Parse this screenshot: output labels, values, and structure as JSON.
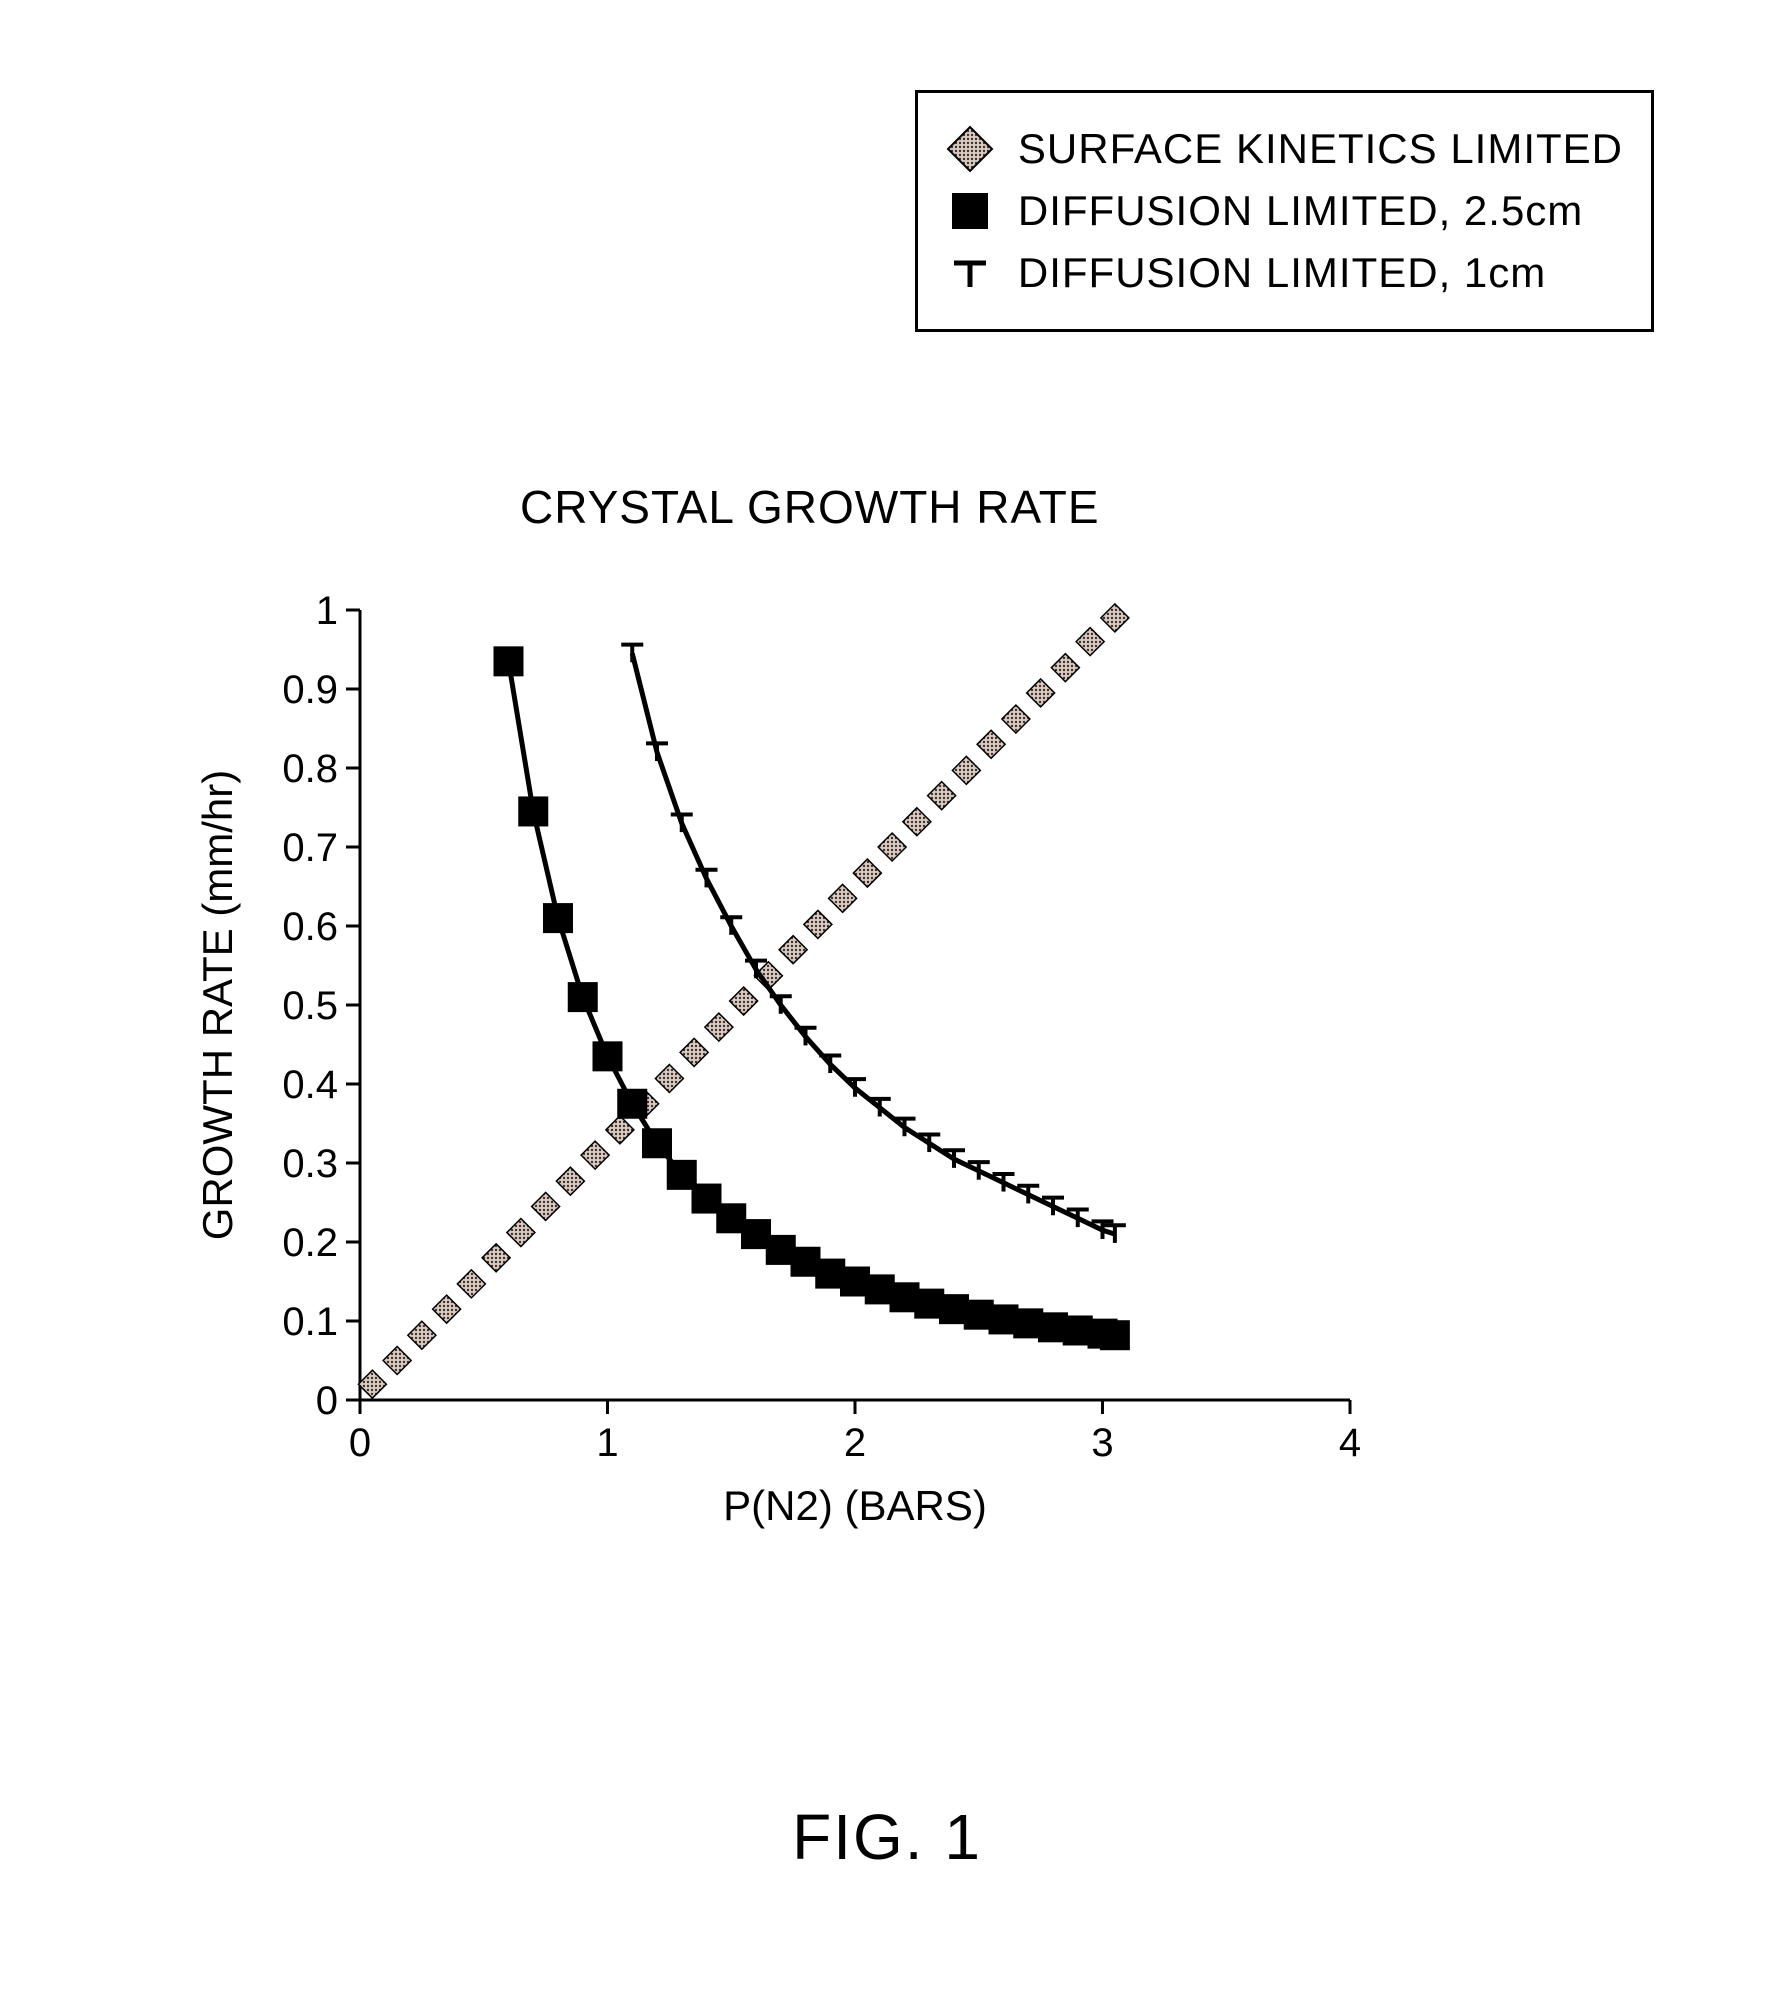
{
  "figure_caption": "FIG. 1",
  "legend": {
    "items": [
      {
        "marker": "diamond-dotted",
        "label": "SURFACE KINETICS LIMITED"
      },
      {
        "marker": "square-black",
        "label": "DIFFUSION LIMITED, 2.5cm"
      },
      {
        "marker": "tee-top",
        "label": "DIFFUSION LIMITED, 1cm"
      }
    ]
  },
  "chart": {
    "type": "line-scatter",
    "title": "CRYSTAL GROWTH RATE",
    "title_fontsize": 46,
    "background_color": "#ffffff",
    "axis_color": "#000000",
    "axis_width": 3,
    "label_fontsize": 42,
    "tick_fontsize": 40,
    "x": {
      "label": "P(N2) (BARS)",
      "min": 0,
      "max": 4,
      "ticks": [
        0,
        1,
        2,
        3,
        4
      ]
    },
    "y": {
      "label": "GROWTH RATE (mm/hr)",
      "min": 0,
      "max": 1,
      "ticks": [
        0,
        0.1,
        0.2,
        0.3,
        0.4,
        0.5,
        0.6,
        0.7,
        0.8,
        0.9,
        1
      ]
    },
    "series": [
      {
        "name": "SURFACE KINETICS LIMITED",
        "marker": "diamond-dotted",
        "color_fill": "#b8a8a0",
        "color_stroke": "#000000",
        "marker_size": 28,
        "line": false,
        "points": [
          [
            0.05,
            0.02
          ],
          [
            0.15,
            0.05
          ],
          [
            0.25,
            0.082
          ],
          [
            0.35,
            0.115
          ],
          [
            0.45,
            0.147
          ],
          [
            0.55,
            0.18
          ],
          [
            0.65,
            0.212
          ],
          [
            0.75,
            0.245
          ],
          [
            0.85,
            0.277
          ],
          [
            0.95,
            0.31
          ],
          [
            1.05,
            0.342
          ],
          [
            1.15,
            0.375
          ],
          [
            1.25,
            0.407
          ],
          [
            1.35,
            0.44
          ],
          [
            1.45,
            0.472
          ],
          [
            1.55,
            0.505
          ],
          [
            1.65,
            0.537
          ],
          [
            1.75,
            0.57
          ],
          [
            1.85,
            0.602
          ],
          [
            1.95,
            0.635
          ],
          [
            2.05,
            0.667
          ],
          [
            2.15,
            0.7
          ],
          [
            2.25,
            0.732
          ],
          [
            2.35,
            0.765
          ],
          [
            2.45,
            0.797
          ],
          [
            2.55,
            0.83
          ],
          [
            2.65,
            0.862
          ],
          [
            2.75,
            0.895
          ],
          [
            2.85,
            0.927
          ],
          [
            2.95,
            0.96
          ],
          [
            3.05,
            0.99
          ]
        ]
      },
      {
        "name": "DIFFUSION LIMITED, 2.5cm",
        "marker": "square-black",
        "color_fill": "#000000",
        "color_stroke": "#000000",
        "marker_size": 30,
        "line": true,
        "line_color": "#000000",
        "line_width": 5,
        "line_range": [
          0.55,
          1.3
        ],
        "points": [
          [
            0.6,
            0.935
          ],
          [
            0.7,
            0.745
          ],
          [
            0.8,
            0.61
          ],
          [
            0.9,
            0.51
          ],
          [
            1.0,
            0.435
          ],
          [
            1.1,
            0.375
          ],
          [
            1.2,
            0.325
          ],
          [
            1.3,
            0.285
          ],
          [
            1.4,
            0.255
          ],
          [
            1.5,
            0.23
          ],
          [
            1.6,
            0.21
          ],
          [
            1.7,
            0.19
          ],
          [
            1.8,
            0.175
          ],
          [
            1.9,
            0.16
          ],
          [
            2.0,
            0.15
          ],
          [
            2.1,
            0.14
          ],
          [
            2.2,
            0.13
          ],
          [
            2.3,
            0.122
          ],
          [
            2.4,
            0.115
          ],
          [
            2.5,
            0.108
          ],
          [
            2.6,
            0.102
          ],
          [
            2.7,
            0.097
          ],
          [
            2.8,
            0.092
          ],
          [
            2.9,
            0.088
          ],
          [
            3.0,
            0.084
          ],
          [
            3.05,
            0.082
          ]
        ]
      },
      {
        "name": "DIFFUSION LIMITED, 1cm",
        "marker": "tee-top",
        "color_fill": "#000000",
        "color_stroke": "#000000",
        "marker_size": 22,
        "line": true,
        "line_color": "#000000",
        "line_width": 5,
        "line_range": [
          1.05,
          3.05
        ],
        "points": [
          [
            1.1,
            0.945
          ],
          [
            1.2,
            0.82
          ],
          [
            1.3,
            0.73
          ],
          [
            1.4,
            0.66
          ],
          [
            1.5,
            0.6
          ],
          [
            1.6,
            0.545
          ],
          [
            1.7,
            0.5
          ],
          [
            1.8,
            0.46
          ],
          [
            1.9,
            0.425
          ],
          [
            2.0,
            0.395
          ],
          [
            2.1,
            0.37
          ],
          [
            2.2,
            0.345
          ],
          [
            2.3,
            0.325
          ],
          [
            2.4,
            0.305
          ],
          [
            2.5,
            0.29
          ],
          [
            2.6,
            0.275
          ],
          [
            2.7,
            0.26
          ],
          [
            2.8,
            0.245
          ],
          [
            2.9,
            0.23
          ],
          [
            3.0,
            0.215
          ],
          [
            3.05,
            0.21
          ]
        ]
      }
    ],
    "plot": {
      "inner_x": 170,
      "inner_y": 30,
      "inner_w": 990,
      "inner_h": 790
    }
  }
}
